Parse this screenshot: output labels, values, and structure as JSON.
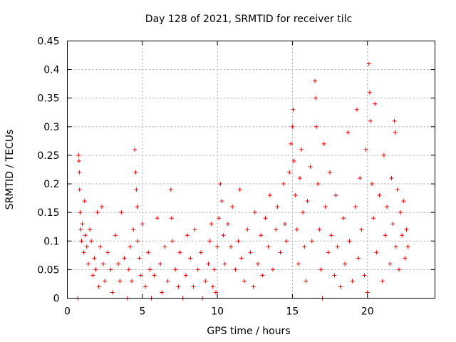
{
  "chart_data": {
    "type": "scatter",
    "title": "Day 128 of 2021, SRMTID for receiver tilc",
    "xlabel": "GPS time / hours",
    "ylabel": "SRMTID / TECUs",
    "xlim": [
      0,
      24.5
    ],
    "ylim": [
      0,
      0.45
    ],
    "x_ticks": [
      0,
      5,
      10,
      15,
      20
    ],
    "x_tick_labels": [
      "0",
      "5",
      "10",
      "15",
      "20"
    ],
    "y_ticks": [
      0,
      0.05,
      0.1,
      0.15,
      0.2,
      0.25,
      0.3,
      0.35,
      0.4,
      0.45
    ],
    "y_tick_labels": [
      "0",
      "0.05",
      "0.1",
      "0.15",
      "0.2",
      "0.25",
      "0.3",
      "0.35",
      "0.4",
      "0.45"
    ],
    "grid": true,
    "marker": "plus",
    "color": "#e60000",
    "series": [
      {
        "name": "SRMTID",
        "points": [
          [
            0.7,
            0.0
          ],
          [
            0.75,
            0.25
          ],
          [
            0.78,
            0.24
          ],
          [
            0.8,
            0.22
          ],
          [
            0.82,
            0.19
          ],
          [
            0.85,
            0.15
          ],
          [
            0.9,
            0.12
          ],
          [
            0.95,
            0.1
          ],
          [
            1.0,
            0.13
          ],
          [
            1.1,
            0.08
          ],
          [
            1.15,
            0.17
          ],
          [
            1.2,
            0.11
          ],
          [
            1.3,
            0.09
          ],
          [
            1.4,
            0.06
          ],
          [
            1.5,
            0.12
          ],
          [
            1.6,
            0.1
          ],
          [
            1.7,
            0.04
          ],
          [
            1.8,
            0.07
          ],
          [
            1.9,
            0.05
          ],
          [
            2.0,
            0.15
          ],
          [
            2.1,
            0.02
          ],
          [
            2.2,
            0.09
          ],
          [
            2.3,
            0.16
          ],
          [
            2.4,
            0.06
          ],
          [
            2.5,
            0.03
          ],
          [
            2.7,
            0.08
          ],
          [
            2.9,
            0.05
          ],
          [
            3.0,
            0.01
          ],
          [
            3.2,
            0.11
          ],
          [
            3.4,
            0.06
          ],
          [
            3.5,
            0.03
          ],
          [
            3.6,
            0.15
          ],
          [
            3.8,
            0.07
          ],
          [
            4.0,
            0.0
          ],
          [
            4.1,
            0.05
          ],
          [
            4.2,
            0.09
          ],
          [
            4.3,
            0.03
          ],
          [
            4.4,
            0.12
          ],
          [
            4.5,
            0.26
          ],
          [
            4.55,
            0.22
          ],
          [
            4.6,
            0.19
          ],
          [
            4.65,
            0.16
          ],
          [
            4.7,
            0.1
          ],
          [
            4.8,
            0.07
          ],
          [
            4.9,
            0.04
          ],
          [
            5.0,
            0.13
          ],
          [
            5.2,
            0.02
          ],
          [
            5.4,
            0.08
          ],
          [
            5.5,
            0.05
          ],
          [
            5.6,
            0.0
          ],
          [
            5.8,
            0.04
          ],
          [
            6.0,
            0.14
          ],
          [
            6.2,
            0.06
          ],
          [
            6.3,
            0.01
          ],
          [
            6.5,
            0.09
          ],
          [
            6.7,
            0.03
          ],
          [
            6.9,
            0.19
          ],
          [
            6.95,
            0.14
          ],
          [
            7.0,
            0.1
          ],
          [
            7.2,
            0.05
          ],
          [
            7.4,
            0.02
          ],
          [
            7.5,
            0.08
          ],
          [
            7.7,
            0.0
          ],
          [
            7.9,
            0.04
          ],
          [
            8.0,
            0.11
          ],
          [
            8.2,
            0.07
          ],
          [
            8.4,
            0.02
          ],
          [
            8.5,
            0.12
          ],
          [
            8.7,
            0.05
          ],
          [
            8.9,
            0.08
          ],
          [
            9.0,
            0.0
          ],
          [
            9.2,
            0.03
          ],
          [
            9.4,
            0.06
          ],
          [
            9.5,
            0.1
          ],
          [
            9.6,
            0.13
          ],
          [
            9.7,
            0.02
          ],
          [
            9.8,
            0.05
          ],
          [
            9.9,
            0.01
          ],
          [
            10.0,
            0.09
          ],
          [
            10.1,
            0.14
          ],
          [
            10.2,
            0.2
          ],
          [
            10.3,
            0.17
          ],
          [
            10.4,
            0.11
          ],
          [
            10.5,
            0.06
          ],
          [
            10.7,
            0.13
          ],
          [
            10.9,
            0.09
          ],
          [
            11.0,
            0.16
          ],
          [
            11.2,
            0.05
          ],
          [
            11.4,
            0.1
          ],
          [
            11.5,
            0.19
          ],
          [
            11.6,
            0.07
          ],
          [
            11.8,
            0.03
          ],
          [
            12.0,
            0.12
          ],
          [
            12.2,
            0.08
          ],
          [
            12.4,
            0.02
          ],
          [
            12.5,
            0.15
          ],
          [
            12.7,
            0.06
          ],
          [
            12.9,
            0.11
          ],
          [
            13.0,
            0.04
          ],
          [
            13.2,
            0.14
          ],
          [
            13.4,
            0.09
          ],
          [
            13.5,
            0.18
          ],
          [
            13.7,
            0.05
          ],
          [
            13.9,
            0.12
          ],
          [
            14.0,
            0.16
          ],
          [
            14.2,
            0.08
          ],
          [
            14.4,
            0.2
          ],
          [
            14.5,
            0.13
          ],
          [
            14.6,
            0.1
          ],
          [
            14.8,
            0.22
          ],
          [
            14.9,
            0.27
          ],
          [
            15.0,
            0.3
          ],
          [
            15.05,
            0.33
          ],
          [
            15.1,
            0.24
          ],
          [
            15.2,
            0.18
          ],
          [
            15.3,
            0.12
          ],
          [
            15.4,
            0.06
          ],
          [
            15.5,
            0.21
          ],
          [
            15.6,
            0.26
          ],
          [
            15.7,
            0.15
          ],
          [
            15.8,
            0.09
          ],
          [
            15.9,
            0.03
          ],
          [
            16.0,
            0.17
          ],
          [
            16.2,
            0.23
          ],
          [
            16.3,
            0.1
          ],
          [
            16.5,
            0.38
          ],
          [
            16.55,
            0.35
          ],
          [
            16.6,
            0.3
          ],
          [
            16.7,
            0.2
          ],
          [
            16.8,
            0.12
          ],
          [
            16.9,
            0.05
          ],
          [
            17.0,
            0.0
          ],
          [
            17.1,
            0.27
          ],
          [
            17.2,
            0.16
          ],
          [
            17.4,
            0.08
          ],
          [
            17.5,
            0.22
          ],
          [
            17.6,
            0.11
          ],
          [
            17.8,
            0.04
          ],
          [
            17.9,
            0.18
          ],
          [
            18.0,
            0.09
          ],
          [
            18.2,
            0.02
          ],
          [
            18.4,
            0.14
          ],
          [
            18.5,
            0.06
          ],
          [
            18.7,
            0.29
          ],
          [
            18.8,
            0.1
          ],
          [
            19.0,
            0.03
          ],
          [
            19.2,
            0.16
          ],
          [
            19.3,
            0.33
          ],
          [
            19.4,
            0.07
          ],
          [
            19.5,
            0.21
          ],
          [
            19.6,
            0.12
          ],
          [
            19.8,
            0.04
          ],
          [
            19.9,
            0.26
          ],
          [
            20.0,
            0.01
          ],
          [
            20.1,
            0.41
          ],
          [
            20.15,
            0.36
          ],
          [
            20.2,
            0.31
          ],
          [
            20.3,
            0.2
          ],
          [
            20.4,
            0.14
          ],
          [
            20.5,
            0.34
          ],
          [
            20.6,
            0.08
          ],
          [
            20.8,
            0.18
          ],
          [
            21.0,
            0.03
          ],
          [
            21.1,
            0.25
          ],
          [
            21.2,
            0.11
          ],
          [
            21.3,
            0.16
          ],
          [
            21.5,
            0.06
          ],
          [
            21.6,
            0.21
          ],
          [
            21.7,
            0.13
          ],
          [
            21.8,
            0.31
          ],
          [
            21.85,
            0.29
          ],
          [
            21.9,
            0.09
          ],
          [
            22.0,
            0.19
          ],
          [
            22.1,
            0.05
          ],
          [
            22.2,
            0.15
          ],
          [
            22.3,
            0.11
          ],
          [
            22.4,
            0.17
          ],
          [
            22.5,
            0.07
          ],
          [
            22.6,
            0.12
          ],
          [
            22.7,
            0.09
          ]
        ]
      }
    ]
  }
}
